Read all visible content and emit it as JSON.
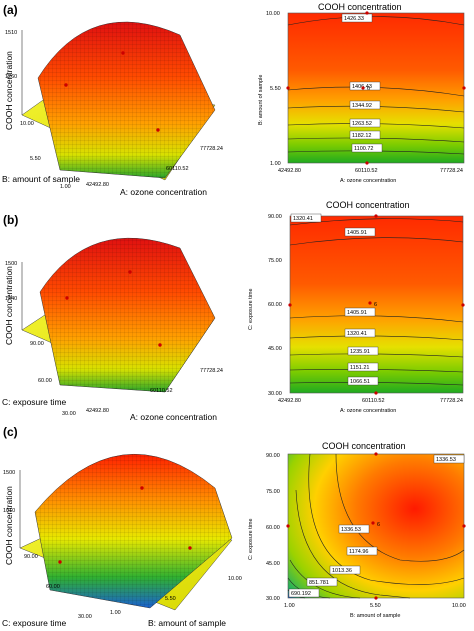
{
  "figure": {
    "panels": [
      {
        "id": "a",
        "label": "(a)",
        "surface_zlabel": "COOH concentration",
        "surface_xlabel": "A: ozone concentration",
        "surface_ylabel": "B: amount of sample",
        "contour_title": "COOH concentration",
        "contour_xlabel": "A: ozone concentration",
        "contour_ylabel": "B: amount of sample"
      },
      {
        "id": "b",
        "label": "(b)",
        "surface_zlabel": "COOH concentration",
        "surface_xlabel": "A: ozone concentration",
        "surface_ylabel": "C: exposure time",
        "contour_title": "COOH concentration",
        "contour_xlabel": "A: ozone concentration",
        "contour_ylabel": "C: exposure time"
      },
      {
        "id": "c",
        "label": "(c)",
        "surface_zlabel": "COOH concentration",
        "surface_xlabel": "B: amount of sample",
        "surface_ylabel": "C: exposure time",
        "contour_title": "COOH concentration",
        "contour_xlabel": "B: amount of sample",
        "contour_ylabel": "C: exposure time"
      }
    ]
  },
  "chart_data": [
    {
      "panel": "a",
      "type": "surface",
      "zlabel": "COOH concentration",
      "xlabel": "A: ozone concentration",
      "ylabel": "B: amount of sample",
      "x_ticks": [
        "42492.80",
        "60110.52",
        "77728.24"
      ],
      "y_ticks": [
        "1.00",
        "5.50",
        "10.00"
      ],
      "z_ticks": [
        "1260",
        "1510"
      ],
      "colormap": [
        "#1fa51f",
        "#e8e800",
        "#ff8c00",
        "#e01010"
      ]
    },
    {
      "panel": "a",
      "type": "contour",
      "title": "COOH concentration",
      "xlabel": "A: ozone concentration",
      "ylabel": "B: amount of sample",
      "x_ticks": [
        "42492.80",
        "60110.52",
        "77728.24"
      ],
      "y_ticks": [
        "1.00",
        "5.50",
        "10.00"
      ],
      "contour_labels": [
        "1426.33",
        "1406.43",
        "1344.92",
        "1263.52",
        "1182.12",
        "1100.72"
      ],
      "design_point_label": "6"
    },
    {
      "panel": "b",
      "type": "surface",
      "zlabel": "COOH concentration",
      "xlabel": "A: ozone concentration",
      "ylabel": "C: exposure time",
      "x_ticks": [
        "42492.80",
        "60110.52",
        "77728.24"
      ],
      "y_ticks": [
        "30.00",
        "60.00",
        "90.00"
      ],
      "z_ticks": [
        "1240",
        "1500"
      ],
      "colormap": [
        "#1fa51f",
        "#e8e800",
        "#ff8c00",
        "#e01010"
      ]
    },
    {
      "panel": "b",
      "type": "contour",
      "title": "COOH concentration",
      "xlabel": "A: ozone concentration",
      "ylabel": "C: exposure time",
      "x_ticks": [
        "42492.80",
        "60110.52",
        "77728.24"
      ],
      "y_ticks": [
        "30.00",
        "45.00",
        "60.00",
        "75.00",
        "90.00"
      ],
      "contour_labels": [
        "1320.41",
        "1405.91",
        "1405.91",
        "1320.41",
        "1235.91",
        "1151.21",
        "1066.51"
      ],
      "design_point_label": "6"
    },
    {
      "panel": "c",
      "type": "surface",
      "zlabel": "COOH concentration",
      "xlabel": "B: amount of sample",
      "ylabel": "C: exposure time",
      "x_ticks": [
        "1.00",
        "5.50",
        "10.00"
      ],
      "y_ticks": [
        "30.00",
        "60.00",
        "90.00"
      ],
      "z_ticks": [
        "1010",
        "1500"
      ],
      "colormap": [
        "#1a4fd0",
        "#1fa51f",
        "#e8e800",
        "#ff8c00",
        "#e01010"
      ]
    },
    {
      "panel": "c",
      "type": "contour",
      "title": "COOH concentration",
      "xlabel": "B: amount of sample",
      "ylabel": "C: exposure time",
      "x_ticks": [
        "1.00",
        "5.50",
        "10.00"
      ],
      "y_ticks": [
        "30.00",
        "45.00",
        "60.00",
        "75.00",
        "90.00"
      ],
      "contour_labels": [
        "1336.53",
        "1336.53",
        "1174.96",
        "1013.36",
        "851.781",
        "690.192"
      ],
      "design_point_label": "6"
    }
  ]
}
